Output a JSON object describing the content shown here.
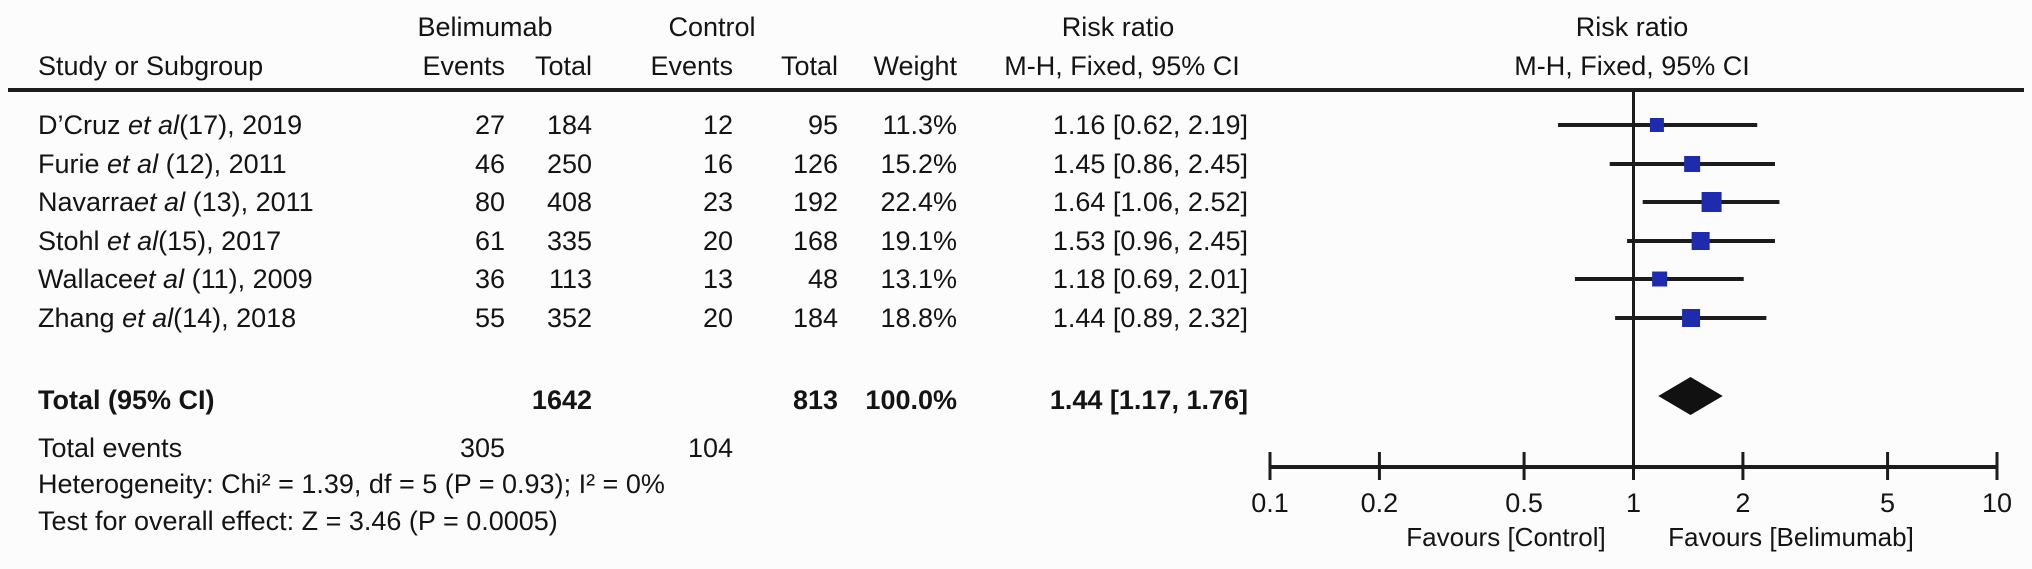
{
  "header": {
    "group1": "Belimumab",
    "group2": "Control",
    "study_col": "Study or Subgroup",
    "events_col": "Events",
    "total_col": "Total",
    "weight_col": "Weight",
    "risk_ratio": "Risk ratio",
    "method": "M-H, Fixed, 95% CI"
  },
  "chart_data": {
    "type": "forest",
    "effect_measure": "Risk ratio",
    "model": "M-H, Fixed, 95% CI",
    "x_scale": "log10",
    "xlim": [
      0.1,
      10
    ],
    "axis_ticks": [
      "0.1",
      "0.2",
      "0.5",
      "1",
      "2",
      "5",
      "10"
    ],
    "favours_left": "Favours [Control]",
    "favours_right": "Favours [Belimumab]",
    "marker_color": "#1f2bad",
    "diamond_color": "#111111",
    "studies": [
      {
        "name_pre": "D’Cruz ",
        "name_italic": "et al",
        "name_post": "(17), 2019",
        "events1": "27",
        "total1": "184",
        "events2": "12",
        "total2": "95",
        "weight": "11.3%",
        "weight_pct": 11.3,
        "rr": 1.16,
        "ci_low": 0.62,
        "ci_high": 2.19,
        "ci_text": "1.16 [0.62, 2.19]"
      },
      {
        "name_pre": "Furie ",
        "name_italic": "et al",
        "name_post": " (12), 2011",
        "events1": "46",
        "total1": "250",
        "events2": "16",
        "total2": "126",
        "weight": "15.2%",
        "weight_pct": 15.2,
        "rr": 1.45,
        "ci_low": 0.86,
        "ci_high": 2.45,
        "ci_text": "1.45 [0.86, 2.45]"
      },
      {
        "name_pre": "Navarra",
        "name_italic": "et al",
        "name_post": " (13), 2011",
        "events1": "80",
        "total1": "408",
        "events2": "23",
        "total2": "192",
        "weight": "22.4%",
        "weight_pct": 22.4,
        "rr": 1.64,
        "ci_low": 1.06,
        "ci_high": 2.52,
        "ci_text": "1.64 [1.06, 2.52]"
      },
      {
        "name_pre": "Stohl ",
        "name_italic": "et al",
        "name_post": "(15), 2017",
        "events1": "61",
        "total1": "335",
        "events2": "20",
        "total2": "168",
        "weight": "19.1%",
        "weight_pct": 19.1,
        "rr": 1.53,
        "ci_low": 0.96,
        "ci_high": 2.45,
        "ci_text": "1.53 [0.96, 2.45]"
      },
      {
        "name_pre": "Wallace",
        "name_italic": "et al",
        "name_post": " (11), 2009",
        "events1": "36",
        "total1": "113",
        "events2": "13",
        "total2": "48",
        "weight": "13.1%",
        "weight_pct": 13.1,
        "rr": 1.18,
        "ci_low": 0.69,
        "ci_high": 2.01,
        "ci_text": "1.18 [0.69, 2.01]"
      },
      {
        "name_pre": "Zhang ",
        "name_italic": "et al",
        "name_post": "(14), 2018",
        "events1": "55",
        "total1": "352",
        "events2": "20",
        "total2": "184",
        "weight": "18.8%",
        "weight_pct": 18.8,
        "rr": 1.44,
        "ci_low": 0.89,
        "ci_high": 2.32,
        "ci_text": "1.44 [0.89, 2.32]"
      }
    ],
    "total": {
      "label": "Total (95% CI)",
      "total1": "1642",
      "total2": "813",
      "weight": "100.0%",
      "rr": 1.44,
      "ci_low": 1.17,
      "ci_high": 1.76,
      "ci_text": "1.44 [1.17, 1.76]"
    },
    "total_events": {
      "label": "Total events",
      "events1": "305",
      "events2": "104"
    },
    "heterogeneity": "Heterogeneity: Chi² = 1.39, df = 5 (P = 0.93); I² = 0%",
    "overall_effect": "Test for overall effect: Z = 3.46 (P = 0.0005)"
  }
}
